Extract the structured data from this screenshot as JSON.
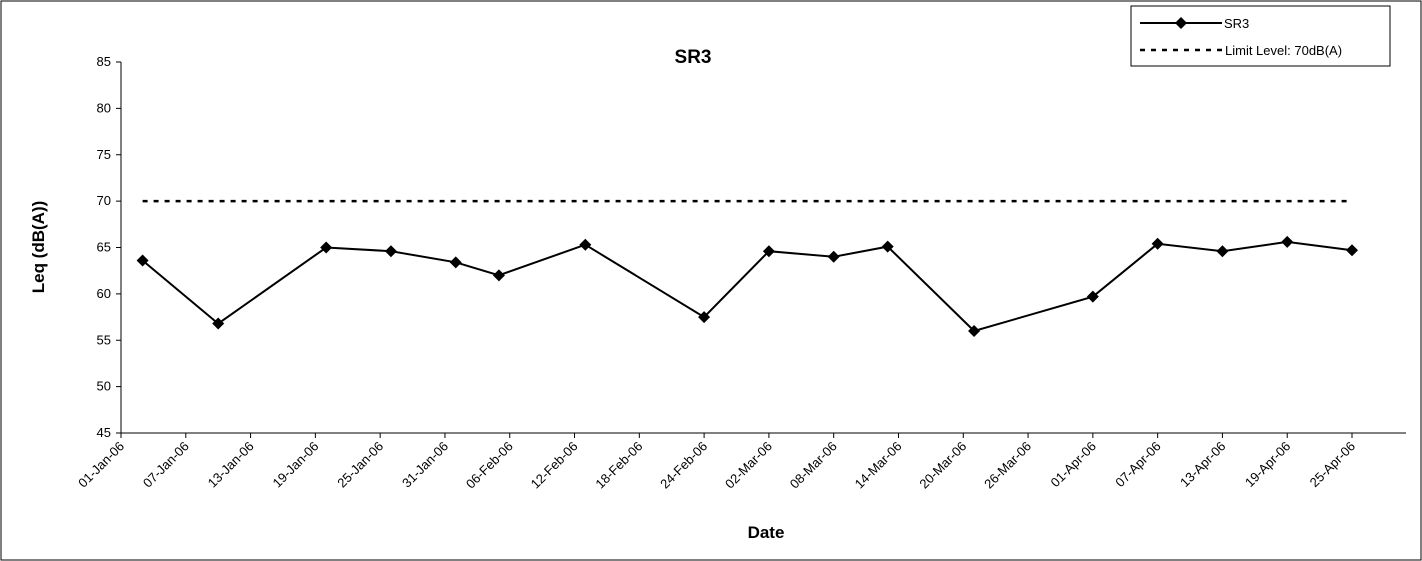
{
  "chart_data": {
    "type": "line",
    "title": "SR3",
    "xlabel": "Date",
    "ylabel": "Leq (dB(A))",
    "ylim": [
      45,
      85
    ],
    "yticks": [
      45,
      50,
      55,
      60,
      65,
      70,
      75,
      80,
      85
    ],
    "xlim": [
      "2006-01-01",
      "2006-04-30"
    ],
    "x_tick_labels": [
      "01-Jan-06",
      "07-Jan-06",
      "13-Jan-06",
      "19-Jan-06",
      "25-Jan-06",
      "31-Jan-06",
      "06-Feb-06",
      "12-Feb-06",
      "18-Feb-06",
      "24-Feb-06",
      "02-Mar-06",
      "08-Mar-06",
      "14-Mar-06",
      "20-Mar-06",
      "26-Mar-06",
      "01-Apr-06",
      "07-Apr-06",
      "13-Apr-06",
      "19-Apr-06",
      "25-Apr-06"
    ],
    "grid": false,
    "legend_position": "top-right",
    "series": [
      {
        "name": "SR3",
        "style": "solid line with diamond markers",
        "color": "#000000",
        "x": [
          "2006-01-03",
          "2006-01-10",
          "2006-01-20",
          "2006-01-26",
          "2006-02-01",
          "2006-02-05",
          "2006-02-13",
          "2006-02-24",
          "2006-03-02",
          "2006-03-08",
          "2006-03-13",
          "2006-03-21",
          "2006-04-01",
          "2006-04-07",
          "2006-04-13",
          "2006-04-19",
          "2006-04-25"
        ],
        "values": [
          63.6,
          56.8,
          65.0,
          64.6,
          63.4,
          62.0,
          65.3,
          57.5,
          64.6,
          64.0,
          65.1,
          56.0,
          59.7,
          65.4,
          64.6,
          65.6,
          64.7
        ]
      },
      {
        "name": "Limit Level: 70dB(A)",
        "style": "dotted line",
        "color": "#000000",
        "x": [
          "2006-01-03",
          "2006-04-25"
        ],
        "values": [
          70,
          70
        ]
      }
    ]
  }
}
